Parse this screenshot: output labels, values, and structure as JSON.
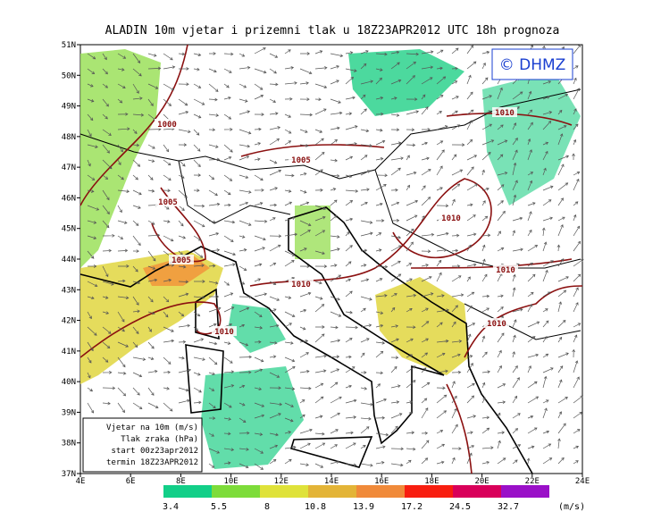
{
  "header": {
    "title": "ALADIN 10m vjetar i prizemni tlak u 18Z23APR2012 UTC 18h prognoza",
    "copyright": "© DHMZ"
  },
  "map": {
    "lat_ticks": [
      {
        "value": 51,
        "label": "51N"
      },
      {
        "value": 50,
        "label": "50N"
      },
      {
        "value": 49,
        "label": "49N"
      },
      {
        "value": 48,
        "label": "48N"
      },
      {
        "value": 47,
        "label": "47N"
      },
      {
        "value": 46,
        "label": "46N"
      },
      {
        "value": 45,
        "label": "45N"
      },
      {
        "value": 44,
        "label": "44N"
      },
      {
        "value": 43,
        "label": "43N"
      },
      {
        "value": 42,
        "label": "42N"
      },
      {
        "value": 41,
        "label": "41N"
      },
      {
        "value": 40,
        "label": "40N"
      },
      {
        "value": 39,
        "label": "39N"
      },
      {
        "value": 38,
        "label": "38N"
      },
      {
        "value": 37,
        "label": "37N"
      }
    ],
    "lon_ticks": [
      {
        "value": 4,
        "label": "4E"
      },
      {
        "value": 6,
        "label": "6E"
      },
      {
        "value": 8,
        "label": "8E"
      },
      {
        "value": 10,
        "label": "10E"
      },
      {
        "value": 12,
        "label": "12E"
      },
      {
        "value": 14,
        "label": "14E"
      },
      {
        "value": 16,
        "label": "16E"
      },
      {
        "value": 18,
        "label": "18E"
      },
      {
        "value": 20,
        "label": "20E"
      },
      {
        "value": 22,
        "label": "22E"
      },
      {
        "value": 24,
        "label": "24E"
      }
    ],
    "isobar_labels": [
      1000,
      1005,
      1005,
      1005,
      1010,
      1010,
      1010,
      1010,
      1010,
      1010
    ],
    "legend": [
      "Vjetar na 10m (m/s)",
      "Tlak zraka (hPa)",
      "start 00z23apr2012",
      "termin 18Z23APR2012"
    ],
    "colorbar": {
      "values": [
        3.4,
        5.5,
        8,
        10.8,
        13.9,
        17.2,
        24.5,
        32.7
      ],
      "colors": [
        "#12cf88",
        "#7ddc3a",
        "#dfe23a",
        "#e3b437",
        "#f08a3a",
        "#f81e10",
        "#d9005a",
        "#9a10c8"
      ],
      "unit": "(m/s)"
    }
  }
}
